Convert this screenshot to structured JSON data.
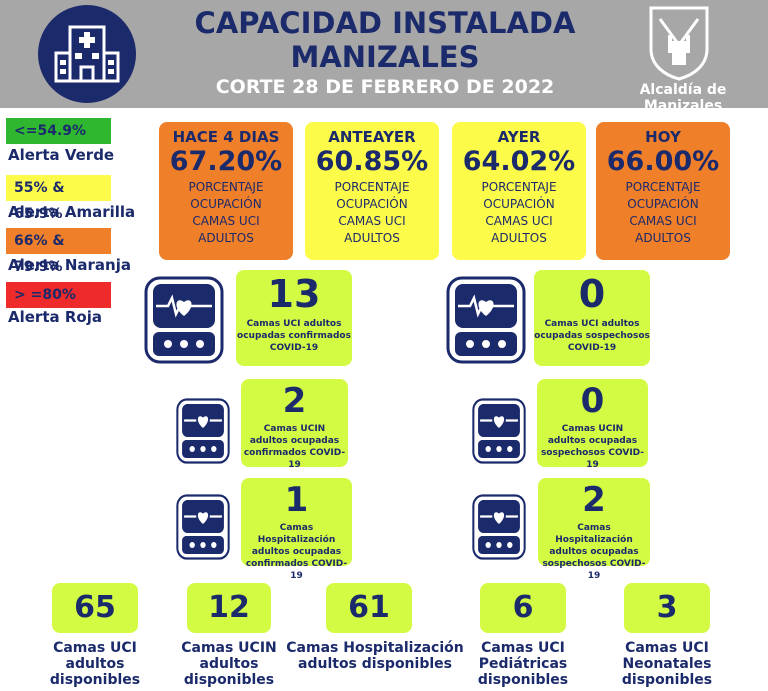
{
  "header": {
    "title_line1": "CAPACIDAD INSTALADA",
    "title_line2": "MANIZALES",
    "subtitle": "CORTE 28 DE FEBRERO DE 2022",
    "brand": "Alcaldía de Manizales",
    "icon": "hospital-icon",
    "brand_icon": "shield-icon"
  },
  "legend": [
    {
      "range": "<=54.9%",
      "label": "Alerta Verde",
      "color": "#2fb82f"
    },
    {
      "range": "55% & 65.9%",
      "label": "Alerta Amarilla",
      "color": "#fdfb4a"
    },
    {
      "range": "66% & 79.9%",
      "label": "Alerta Naranja",
      "color": "#f07f2a"
    },
    {
      "range": "> =80%",
      "label": "Alerta Roja",
      "color": "#ee2a2a"
    }
  ],
  "occupancy": [
    {
      "day": "HACE 4 DIAS",
      "value": "67.20%",
      "desc": [
        "PORCENTAJE",
        "OCUPACIÓN",
        "CAMAS UCI",
        "ADULTOS"
      ],
      "color": "#f07f2a"
    },
    {
      "day": "ANTEAYER",
      "value": "60.85%",
      "desc": [
        "PORCENTAJE",
        "OCUPACIÓN",
        "CAMAS UCI",
        "ADULTOS"
      ],
      "color": "#fdfb4a"
    },
    {
      "day": "AYER",
      "value": "64.02%",
      "desc": [
        "PORCENTAJE",
        "OCUPACIÓN",
        "CAMAS UCI",
        "ADULTOS"
      ],
      "color": "#fdfb4a"
    },
    {
      "day": "HOY",
      "value": "66.00%",
      "desc": [
        "PORCENTAJE",
        "OCUPACIÓN",
        "CAMAS UCI",
        "ADULTOS"
      ],
      "color": "#f07f2a"
    }
  ],
  "counts": {
    "uci_conf": {
      "value": "13",
      "label": [
        "Camas UCI adultos",
        "ocupadas confirmados",
        "COVID-19"
      ]
    },
    "uci_sosp": {
      "value": "0",
      "label": [
        "Camas UCI adultos",
        "ocupadas sospechosos",
        "COVID-19"
      ]
    },
    "ucin_conf": {
      "value": "2",
      "label": [
        "Camas  UCIN",
        "adultos ocupadas",
        "confirmados COVID-19"
      ]
    },
    "ucin_sosp": {
      "value": "0",
      "label": [
        "Camas  UCIN",
        "adultos ocupadas",
        "sospechosos COVID-19"
      ]
    },
    "hosp_conf": {
      "value": "1",
      "label": [
        "Camas  Hospitalización",
        "adultos ocupadas",
        "confirmados COVID-19"
      ]
    },
    "hosp_sosp": {
      "value": "2",
      "label": [
        "Camas  Hospitalización",
        "adultos ocupadas",
        "sospechosos COVID-19"
      ]
    }
  },
  "available": [
    {
      "value": "65",
      "label": [
        "Camas UCI",
        "adultos",
        "disponibles"
      ]
    },
    {
      "value": "12",
      "label": [
        "Camas UCIN",
        "adultos",
        "disponibles"
      ]
    },
    {
      "value": "61",
      "label": [
        "Camas  Hospitalización",
        "adultos disponibles"
      ]
    },
    {
      "value": "6",
      "label": [
        "Camas  UCI",
        "Pediátricas",
        "disponibles"
      ]
    },
    {
      "value": "3",
      "label": [
        "Camas  UCI",
        "Neonatales",
        "disponibles"
      ]
    }
  ],
  "monitor_icon": "heart-monitor-icon"
}
